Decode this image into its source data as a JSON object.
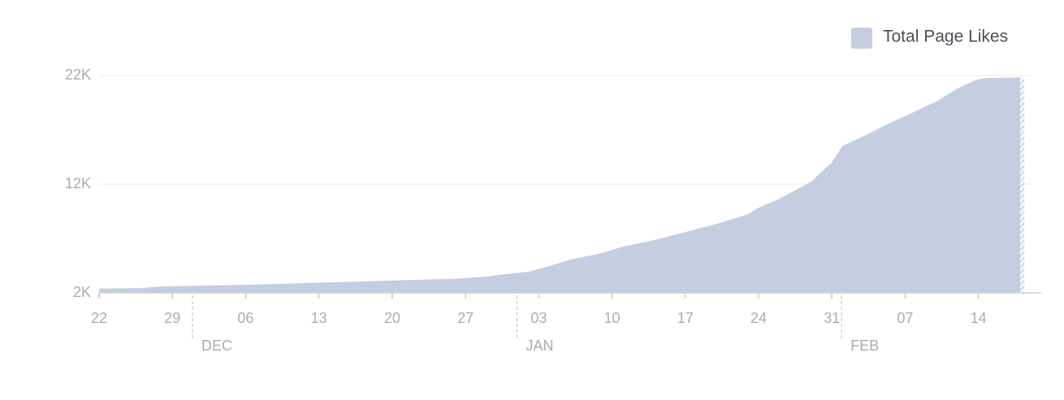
{
  "chart_data": {
    "type": "area",
    "color": "#c5cde0",
    "legend": "Total Page Likes",
    "legend_position": "top-right",
    "x": [
      0,
      4,
      6,
      10,
      14,
      18,
      22,
      26,
      30,
      34,
      37,
      38,
      41,
      43,
      45,
      48,
      50,
      53,
      56,
      59,
      62,
      63,
      65,
      66,
      68,
      70,
      71,
      73,
      75,
      77,
      79,
      80,
      82,
      83,
      84,
      85,
      88
    ],
    "values": [
      2400,
      2450,
      2600,
      2670,
      2750,
      2860,
      2970,
      3080,
      3190,
      3300,
      3490,
      3640,
      3940,
      4460,
      5060,
      5660,
      6250,
      6850,
      7600,
      8340,
      9240,
      9840,
      10660,
      11180,
      12220,
      14010,
      15510,
      16400,
      17370,
      18270,
      19160,
      19610,
      20810,
      21250,
      21660,
      21780,
      21810
    ],
    "xlim": [
      0,
      90
    ],
    "xticks": [
      {
        "value": 0,
        "label": "22"
      },
      {
        "value": 7,
        "label": "29"
      },
      {
        "value": 14,
        "label": "06"
      },
      {
        "value": 21,
        "label": "13"
      },
      {
        "value": 28,
        "label": "20"
      },
      {
        "value": 35,
        "label": "27"
      },
      {
        "value": 42,
        "label": "03"
      },
      {
        "value": 49,
        "label": "10"
      },
      {
        "value": 56,
        "label": "17"
      },
      {
        "value": 63,
        "label": "24"
      },
      {
        "value": 70,
        "label": "31"
      },
      {
        "value": 77,
        "label": "07"
      },
      {
        "value": 84,
        "label": "14"
      }
    ],
    "month_labels": [
      {
        "value": 9,
        "label": "DEC"
      },
      {
        "value": 40,
        "label": "JAN"
      },
      {
        "value": 71,
        "label": "FEB"
      }
    ],
    "ylim": [
      2000,
      22000
    ],
    "yticks": [
      {
        "value": 2000,
        "label": "2K"
      },
      {
        "value": 12000,
        "label": "12K"
      },
      {
        "value": 22000,
        "label": "22K"
      }
    ],
    "grid": true
  }
}
